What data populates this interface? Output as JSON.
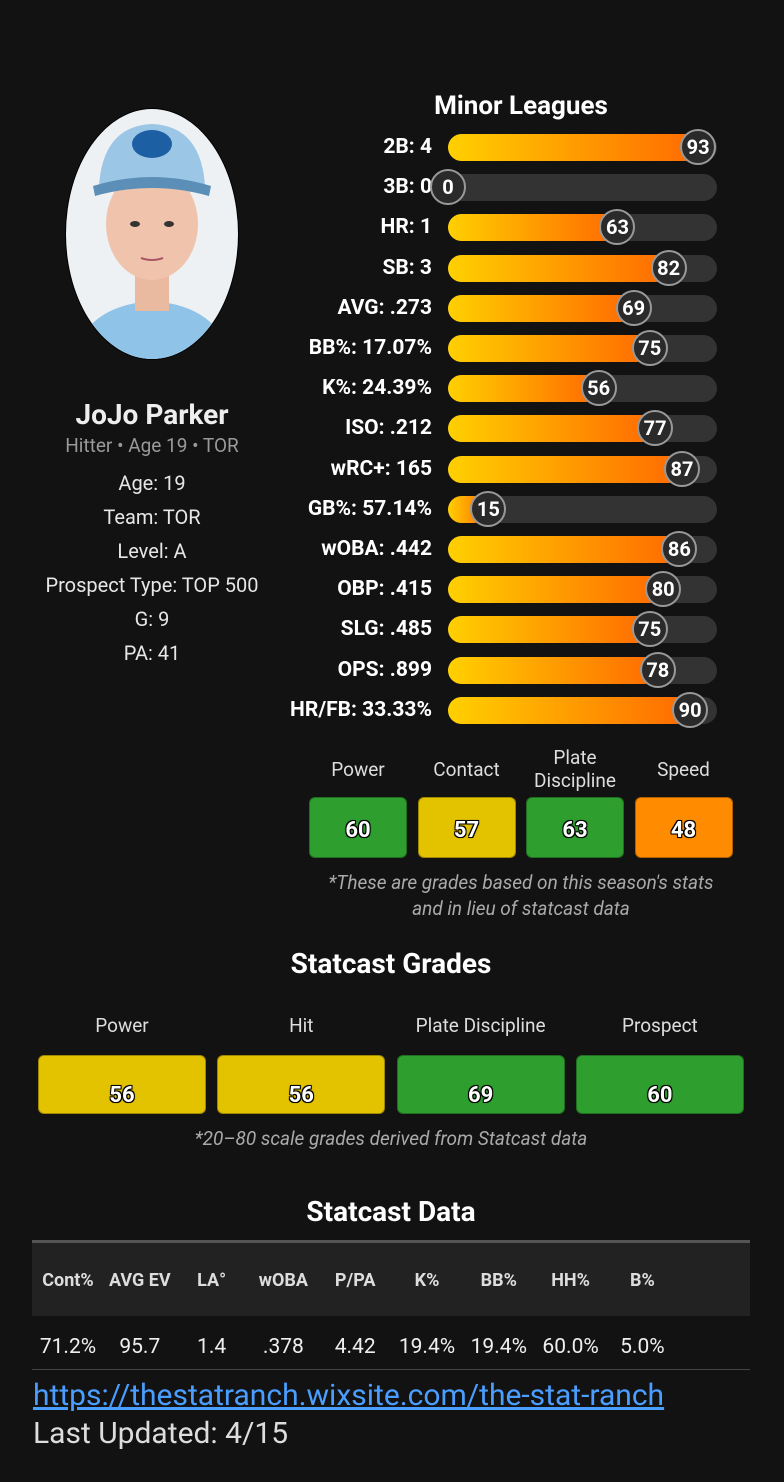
{
  "player": {
    "name": "JoJo Parker",
    "subtitle": "Hitter • Age 19 • TOR",
    "details": [
      "Age: 19",
      "Team: TOR",
      "Level: A",
      "Prospect Type: TOP 500",
      "G: 9",
      "PA: 41"
    ]
  },
  "minor_leagues": {
    "title": "Minor Leagues",
    "xlim": [
      0,
      100
    ],
    "stats": [
      {
        "label": "2B: 4",
        "percentile": 93
      },
      {
        "label": "3B: 0",
        "percentile": 0
      },
      {
        "label": "HR: 1",
        "percentile": 63
      },
      {
        "label": "SB: 3",
        "percentile": 82
      },
      {
        "label": "AVG: .273",
        "percentile": 69
      },
      {
        "label": "BB%: 17.07%",
        "percentile": 75
      },
      {
        "label": "K%: 24.39%",
        "percentile": 56
      },
      {
        "label": "ISO: .212",
        "percentile": 77
      },
      {
        "label": "wRC+: 165",
        "percentile": 87
      },
      {
        "label": "GB%: 57.14%",
        "percentile": 15
      },
      {
        "label": "wOBA: .442",
        "percentile": 86
      },
      {
        "label": "OBP: .415",
        "percentile": 80
      },
      {
        "label": "SLG: .485",
        "percentile": 75
      },
      {
        "label": "OPS: .899",
        "percentile": 78
      },
      {
        "label": "HR/FB: 33.33%",
        "percentile": 90
      }
    ]
  },
  "season_grades": {
    "grades": [
      {
        "label": "Power",
        "value": 60,
        "color": "#2e9e2e"
      },
      {
        "label": "Contact",
        "value": 57,
        "color": "#e3c300"
      },
      {
        "label": "Plate Discipline",
        "value": 63,
        "color": "#2e9e2e"
      },
      {
        "label": "Speed",
        "value": 48,
        "color": "#ff8c00"
      }
    ],
    "note": "*These are grades based on this season's stats and in lieu of statcast data"
  },
  "statcast_grades": {
    "title": "Statcast Grades",
    "grades": [
      {
        "label": "Power",
        "value": 56,
        "color": "#e3c300"
      },
      {
        "label": "Hit",
        "value": 56,
        "color": "#e3c300"
      },
      {
        "label": "Plate Discipline",
        "value": 69,
        "color": "#2e9e2e"
      },
      {
        "label": "Prospect",
        "value": 60,
        "color": "#2e9e2e"
      }
    ],
    "note": "*20–80 scale grades derived from Statcast data"
  },
  "statcast_data": {
    "title": "Statcast Data",
    "columns": [
      "Cont%",
      "AVG EV",
      "LA°",
      "wOBA",
      "P/PA",
      "K%",
      "BB%",
      "HH%",
      "B%"
    ],
    "rows": [
      [
        "71.2%",
        "95.7",
        "1.4",
        ".378",
        "4.42",
        "19.4%",
        "19.4%",
        "60.0%",
        "5.0%"
      ]
    ]
  },
  "footer": {
    "link": "https://thestatranch.wixsite.com/the-stat-ranch",
    "updated": "Last Updated: 4/15"
  }
}
